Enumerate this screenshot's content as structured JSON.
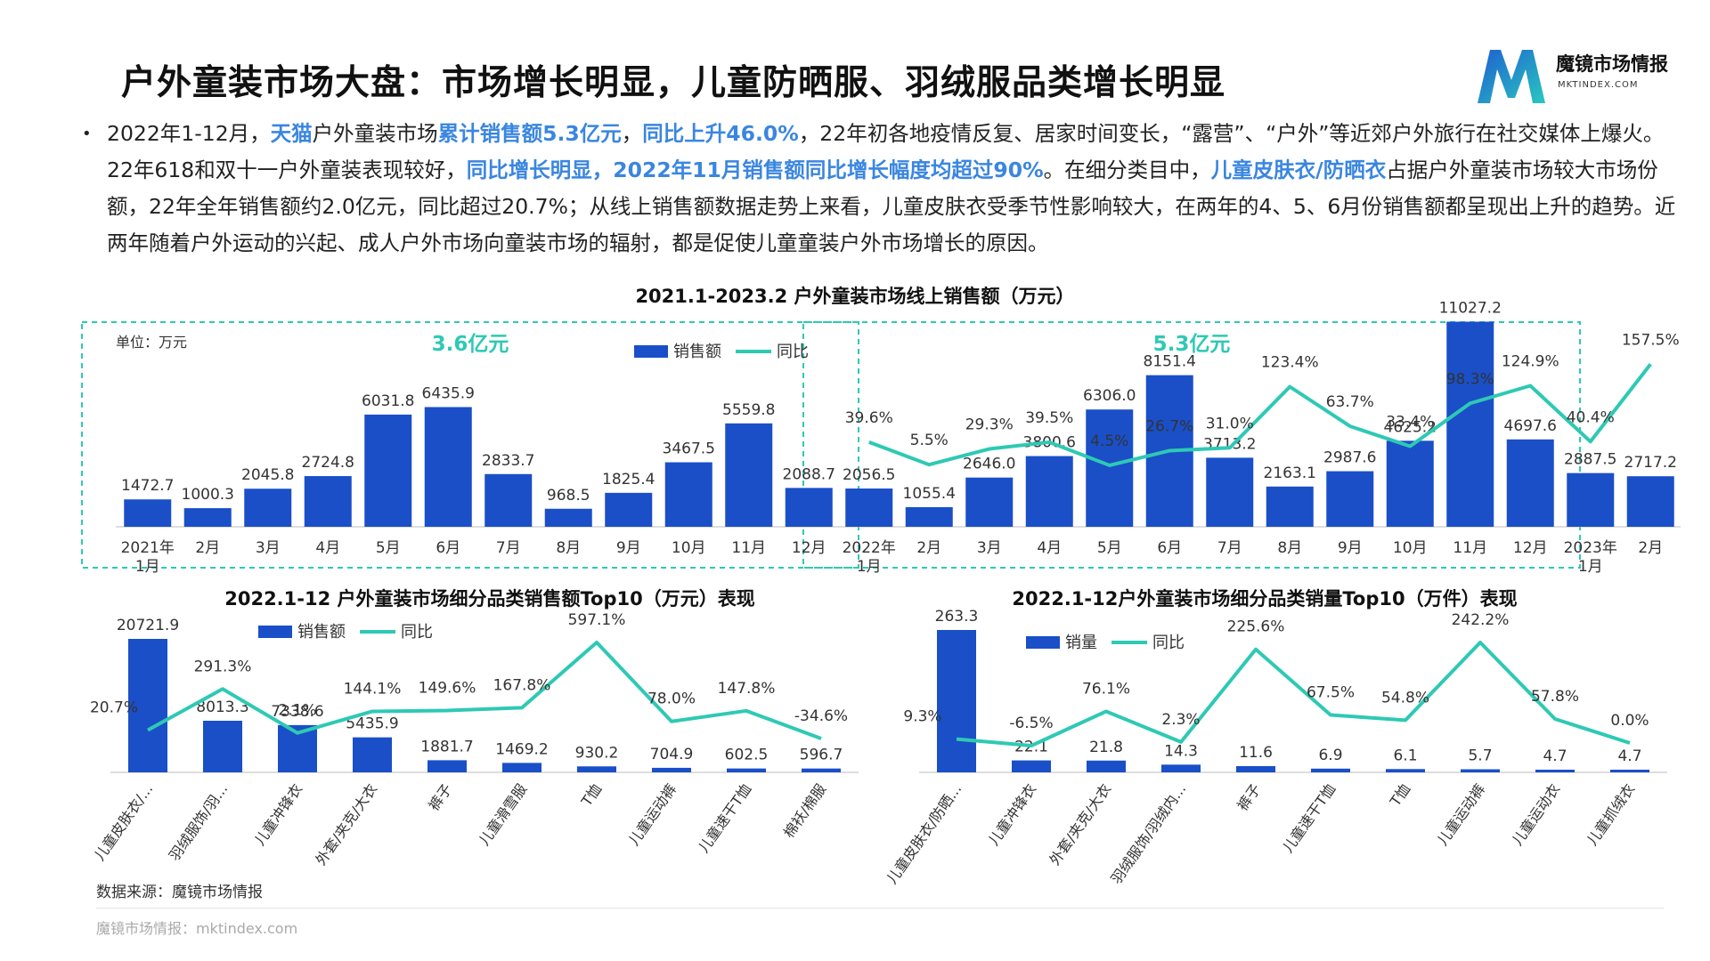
{
  "header": {
    "title": "户外童装市场大盘：市场增长明显，儿童防晒服、羽绒服品类增长明显",
    "logo_name": "魔镜市场情报",
    "logo_url": "MKTINDEX.COM"
  },
  "colors": {
    "bar": "#1a4fc8",
    "line": "#2ec9b4",
    "highlight": "#3a86e0",
    "box": "#2ec9b4"
  },
  "bullet": {
    "segments": [
      {
        "text": "2022年1-12月，",
        "hl": false
      },
      {
        "text": "天猫",
        "hl": true
      },
      {
        "text": "户外童装市场",
        "hl": false
      },
      {
        "text": "累计销售额5.3亿元",
        "hl": true
      },
      {
        "text": "，",
        "hl": false
      },
      {
        "text": "同比上升46.0%",
        "hl": true
      },
      {
        "text": "，22年初各地疫情反复、居家时间变长，“露营”、“户外”等近郊户外旅行在社交媒体上爆火。22年618和双十一户外童装表现较好，",
        "hl": false
      },
      {
        "text": "同比增长明显，2022年11月销售额同比增长幅度均超过90%",
        "hl": true
      },
      {
        "text": "。在细分类目中，",
        "hl": false
      },
      {
        "text": "儿童皮肤衣/防晒衣",
        "hl": true
      },
      {
        "text": "占据户外童装市场较大市场份额，22年全年销售额约2.0亿元，同比超过20.7%；从线上销售额数据走势上来看，儿童皮肤衣受季节性影响较大，在两年的4、5、6月份销售额都呈现出上升的趋势。近两年随着户外运动的兴起、成人户外市场向童装市场的辐射，都是促使儿童童装户外市场增长的原因。",
        "hl": false
      }
    ]
  },
  "chart_data": [
    {
      "type": "bar+line",
      "title": "2021.1-2023.2 户外童装市场线上销售额（万元）",
      "unit_label": "单位：万元",
      "legend": [
        "销售额",
        "同比"
      ],
      "boxes": [
        {
          "label": "3.6亿元",
          "from": 0,
          "to": 11
        },
        {
          "label": "5.3亿元",
          "from": 12,
          "to": 23
        }
      ],
      "categories": [
        "2021年\n1月",
        "2月",
        "3月",
        "4月",
        "5月",
        "6月",
        "7月",
        "8月",
        "9月",
        "10月",
        "11月",
        "12月",
        "2022年\n1月",
        "2月",
        "3月",
        "4月",
        "5月",
        "6月",
        "7月",
        "8月",
        "9月",
        "10月",
        "11月",
        "12月",
        "2023年\n1月",
        "2月"
      ],
      "values": [
        1472.7,
        1000.3,
        2045.8,
        2724.8,
        6031.8,
        6435.9,
        2833.7,
        968.5,
        1825.4,
        3467.5,
        5559.8,
        2088.7,
        2056.5,
        1055.4,
        2646.0,
        3800.6,
        6306.0,
        8151.4,
        3713.2,
        2163.1,
        2987.6,
        4625.2,
        11027.2,
        4697.6,
        2887.5,
        2717.2
      ],
      "value_labels": [
        "1472.7",
        "1000.3",
        "2045.8",
        "2724.8",
        "6031.8",
        "6435.9",
        "2833.7",
        "968.5",
        "1825.4",
        "3467.5",
        "5559.8",
        "2088.7",
        "2056.5",
        "1055.4",
        "2646.0",
        "3800.6",
        "6306.0",
        "8151.4",
        "3713.2",
        "2163.1",
        "2987.6",
        "4625.2",
        "11027.2",
        "4697.6",
        "2887.5",
        "2717.2"
      ],
      "yoy": [
        null,
        null,
        null,
        null,
        null,
        null,
        null,
        null,
        null,
        null,
        null,
        null,
        39.6,
        5.5,
        29.3,
        39.5,
        4.5,
        26.7,
        31.0,
        123.4,
        63.7,
        33.4,
        98.3,
        124.9,
        40.4,
        157.5
      ],
      "yoy_labels": [
        "",
        "",
        "",
        "",
        "",
        "",
        "",
        "",
        "",
        "",
        "",
        "",
        "39.6%",
        "5.5%",
        "29.3%",
        "39.5%",
        "4.5%",
        "26.7%",
        "31.0%",
        "123.4%",
        "63.7%",
        "33.4%",
        "98.3%",
        "124.9%",
        "40.4%",
        "157.5%"
      ],
      "ylim": [
        0,
        12000
      ]
    },
    {
      "type": "bar+line",
      "title": "2022.1-12 户外童装市场细分品类销售额Top10（万元）表现",
      "legend": [
        "销售额",
        "同比"
      ],
      "categories": [
        "儿童皮肤衣/...",
        "羽绒服饰/羽...",
        "儿童冲锋衣",
        "外套/夹克/大衣",
        "裤子",
        "儿童滑雪服",
        "T恤",
        "儿童运动裤",
        "儿童速干T恤",
        "棉袄/棉服"
      ],
      "values": [
        20721.9,
        8013.3,
        7338.6,
        5435.9,
        1881.7,
        1469.2,
        930.2,
        704.9,
        602.5,
        596.7
      ],
      "value_labels": [
        "20721.9",
        "8013.3",
        "7338.6",
        "5435.9",
        "1881.7",
        "1469.2",
        "930.2",
        "704.9",
        "602.5",
        "596.7"
      ],
      "yoy": [
        20.7,
        291.3,
        2.1,
        144.1,
        149.6,
        167.8,
        597.1,
        78.0,
        147.8,
        -34.6
      ],
      "yoy_labels": [
        "20.7%",
        "291.3%",
        "2.1%",
        "144.1%",
        "149.6%",
        "167.8%",
        "597.1%",
        "78.0%",
        "147.8%",
        "-34.6%"
      ]
    },
    {
      "type": "bar+line",
      "title": "2022.1-12户外童装市场细分品类销量Top10（万件）表现",
      "legend": [
        "销量",
        "同比"
      ],
      "categories": [
        "儿童皮肤衣/防晒...",
        "儿童冲锋衣",
        "外套/夹克/大衣",
        "羽绒服饰/羽绒内...",
        "裤子",
        "儿童速干T恤",
        "T恤",
        "儿童运动裤",
        "儿童运动衣",
        "儿童抓绒衣"
      ],
      "values": [
        263.3,
        22.1,
        21.8,
        14.3,
        11.6,
        6.9,
        6.1,
        5.7,
        4.7,
        4.7
      ],
      "value_labels": [
        "263.3",
        "22.1",
        "21.8",
        "14.3",
        "11.6",
        "6.9",
        "6.1",
        "5.7",
        "4.7",
        "4.7"
      ],
      "yoy": [
        9.3,
        -6.5,
        76.1,
        2.3,
        225.6,
        67.5,
        54.8,
        242.2,
        57.8,
        0.0
      ],
      "yoy_labels": [
        "9.3%",
        "-6.5%",
        "76.1%",
        "2.3%",
        "225.6%",
        "67.5%",
        "54.8%",
        "242.2%",
        "57.8%",
        "0.0%"
      ]
    }
  ],
  "footer": {
    "source": "数据来源：魔镜市场情报",
    "url": "魔镜市场情报：mktindex.com"
  }
}
